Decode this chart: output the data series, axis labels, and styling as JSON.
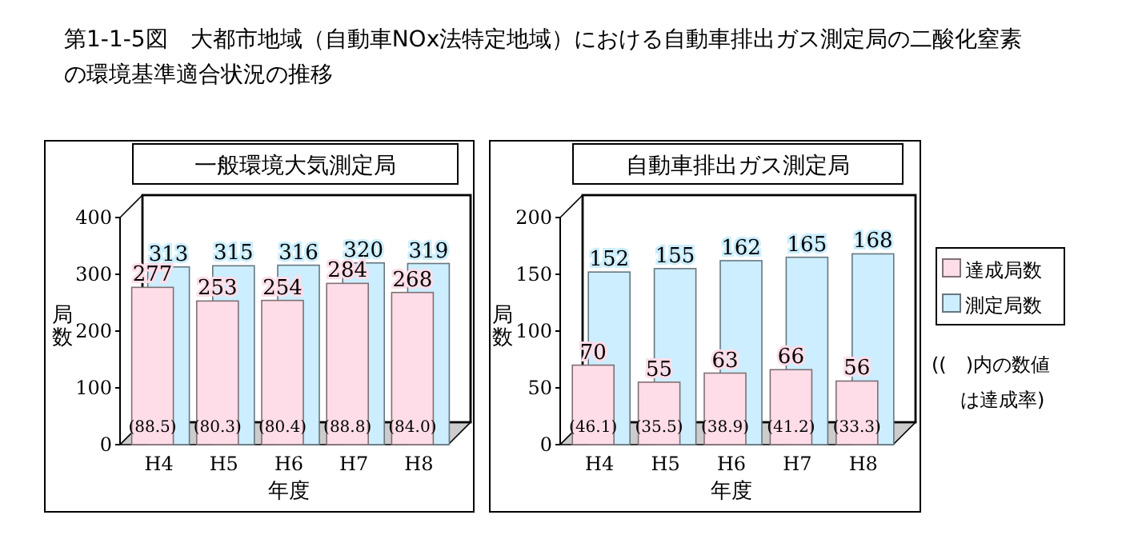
{
  "chart_data": [
    {
      "type": "bar",
      "title": "第1-1-5図　大都市地域（自動車NOx法特定地域）における自動車排出ガス測定局の二酸化窒素の環境基準適合状況の推移",
      "subtitle": "一般環境大気測定局",
      "xlabel": "年度",
      "ylabel": "局数",
      "categories": [
        "H4",
        "H5",
        "H6",
        "H7",
        "H8"
      ],
      "ylim": [
        0,
        400
      ],
      "yticks": [
        0,
        100,
        200,
        300,
        400
      ],
      "data_labels": true,
      "series": [
        {
          "color": "#cceeff",
          "values": [
            313,
            315,
            316,
            320,
            319
          ]
        },
        {
          "color": "#ffdde8",
          "values": [
            277,
            253,
            254,
            284,
            268
          ]
        }
      ],
      "annotations": [
        "(88.5)",
        "(80.3)",
        "(80.4)",
        "(88.8)",
        "(84.0)"
      ],
      "legend": false
    },
    {
      "type": "bar",
      "subtitle": "自動車排出ガス測定局",
      "xlabel": "年度",
      "ylabel": "局数",
      "categories": [
        "H4",
        "H5",
        "H6",
        "H7",
        "H8"
      ],
      "ylim": [
        0,
        200
      ],
      "yticks": [
        0,
        50,
        100,
        150,
        200
      ],
      "data_labels": true,
      "legend": "right",
      "series": [
        {
          "name": "測定局数",
          "color": "#cceeff",
          "values": [
            152,
            155,
            162,
            165,
            168
          ]
        },
        {
          "name": "達成局数",
          "color": "#ffdde8",
          "values": [
            70,
            55,
            63,
            66,
            56
          ]
        }
      ],
      "annotations": [
        "(46.1)",
        "(35.5)",
        "(38.9)",
        "(41.2)",
        "(33.3)",
        "((　)内の数値は達成率)"
      ]
    }
  ]
}
